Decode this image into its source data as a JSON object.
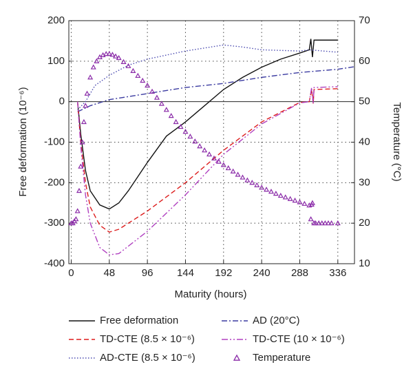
{
  "chart_data": {
    "type": "line",
    "xlabel": "Maturity (hours)",
    "ylabel": "Free deformation (10⁻⁶)",
    "y2label": "Temperature (°C)",
    "xlim": [
      -3,
      357
    ],
    "xticks": [
      0,
      48,
      96,
      144,
      192,
      240,
      288,
      336
    ],
    "ylim": [
      -400,
      200
    ],
    "yticks": [
      -400,
      -300,
      -200,
      -100,
      0,
      100,
      200
    ],
    "y2lim": [
      10,
      70
    ],
    "y2ticks": [
      10,
      20,
      30,
      40,
      50,
      60,
      70
    ],
    "grid": true,
    "legend": "bottom",
    "series": [
      {
        "name": "Free deformation",
        "color": "#111111",
        "dash": "none",
        "x": [
          8,
          12,
          18,
          24,
          36,
          48,
          60,
          72,
          96,
          120,
          144,
          168,
          192,
          216,
          240,
          264,
          288,
          300,
          302,
          304,
          306,
          336
        ],
        "values": [
          0,
          -80,
          -170,
          -220,
          -255,
          -265,
          -250,
          -220,
          -150,
          -85,
          -50,
          -10,
          30,
          60,
          85,
          105,
          120,
          128,
          155,
          110,
          152,
          152
        ]
      },
      {
        "name": "AD (20°C)",
        "color": "#3a3aa0",
        "dash": "8 3 2 3",
        "x": [
          8,
          24,
          48,
          96,
          144,
          192,
          240,
          288,
          336,
          356
        ],
        "values": [
          -25,
          -10,
          5,
          20,
          35,
          45,
          60,
          72,
          80,
          86
        ]
      },
      {
        "name": "TD-CTE (8.5 × 10⁻⁶)",
        "color": "#dd1c1c",
        "dash": "7 4",
        "x": [
          8,
          12,
          18,
          24,
          36,
          48,
          60,
          96,
          144,
          192,
          240,
          288,
          300,
          303,
          305,
          306,
          336
        ],
        "values": [
          0,
          -100,
          -200,
          -260,
          -305,
          -322,
          -315,
          -270,
          -200,
          -120,
          -50,
          -2,
          0,
          30,
          -5,
          30,
          32
        ]
      },
      {
        "name": "TD-CTE (10 × 10⁻⁶)",
        "color": "#b040c0",
        "dash": "9 3 2 3 2 3",
        "x": [
          8,
          12,
          18,
          24,
          36,
          48,
          60,
          96,
          144,
          192,
          240,
          288,
          300,
          303,
          305,
          306,
          336
        ],
        "values": [
          0,
          -110,
          -230,
          -300,
          -360,
          -378,
          -375,
          -320,
          -230,
          -130,
          -55,
          -3,
          0,
          35,
          -5,
          35,
          37
        ]
      },
      {
        "name": "AD-CTE (8.5 × 10⁻⁶)",
        "color": "#4a4ab0",
        "dash": "1.5 2.5",
        "x": [
          8,
          18,
          30,
          48,
          72,
          96,
          144,
          192,
          216,
          240,
          288,
          300,
          336
        ],
        "values": [
          -20,
          0,
          40,
          65,
          90,
          105,
          125,
          140,
          135,
          128,
          125,
          128,
          122
        ]
      },
      {
        "name": "Temperature",
        "color": "#8a2aa8",
        "marker": "triangle",
        "axis": "y2",
        "x": [
          0,
          2,
          4,
          6,
          8,
          10,
          12,
          14,
          16,
          18,
          20,
          24,
          28,
          32,
          36,
          40,
          44,
          48,
          52,
          56,
          60,
          66,
          72,
          78,
          84,
          90,
          96,
          102,
          108,
          114,
          120,
          126,
          132,
          138,
          144,
          150,
          156,
          162,
          168,
          174,
          180,
          186,
          192,
          198,
          204,
          210,
          216,
          222,
          228,
          234,
          240,
          246,
          252,
          258,
          264,
          270,
          276,
          282,
          288,
          294,
          300,
          302,
          303,
          304,
          306,
          308,
          312,
          316,
          320,
          324,
          328,
          336
        ],
        "values": [
          20,
          20,
          20.5,
          21,
          23,
          28,
          34,
          40,
          45,
          49,
          52,
          56,
          58.5,
          60,
          61,
          61.5,
          61.8,
          61.8,
          61.6,
          61.2,
          60.8,
          59.8,
          58.8,
          57.6,
          56.4,
          55.2,
          54,
          52.5,
          51,
          49.5,
          48,
          46.5,
          45,
          43.8,
          42.6,
          41.4,
          40.2,
          39,
          38,
          37,
          36,
          35.2,
          34.4,
          33.6,
          32.8,
          32,
          31.3,
          30.6,
          30,
          29.4,
          28.8,
          28.3,
          27.8,
          27.3,
          26.8,
          26.4,
          26,
          25.6,
          25.2,
          24.8,
          24.4,
          21,
          24.6,
          25,
          20,
          20,
          20,
          20,
          20,
          20,
          20,
          20
        ]
      }
    ]
  }
}
